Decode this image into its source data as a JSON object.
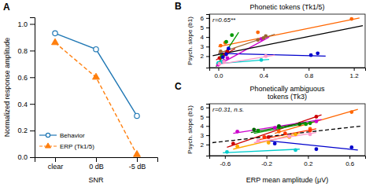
{
  "chart_data": [
    {
      "type": "line",
      "annotations": [
        "A"
      ],
      "xlabel": "SNR",
      "ylabel": "Normalized response amplitude",
      "categories": [
        "clear",
        "0 dB",
        "-5 dB"
      ],
      "series": [
        {
          "name": "Behavior",
          "values": [
            0.93,
            0.81,
            0.31
          ],
          "marker": "circle",
          "line_style": "solid"
        },
        {
          "name": "ERP (Tk1/5)",
          "values": [
            0.86,
            0.6,
            0.02
          ],
          "marker": "triangle",
          "line_style": "dashed"
        }
      ],
      "ylim": [
        0,
        1.05
      ],
      "yticks": [
        {
          "value": 0,
          "label": "0.0"
        },
        0.2,
        0.4,
        0.6,
        0.8,
        {
          "value": 1,
          "label": "1.0"
        }
      ],
      "legend": "lower left"
    },
    {
      "type": "scatter",
      "title": "Phonetic tokens (Tk1/5)",
      "ylabel": "Psych. slope (b1)",
      "annotations": [
        "B",
        "r=0.65**"
      ],
      "xlim": [
        -0.08,
        1.3
      ],
      "ylim": [
        0.8,
        6.4
      ],
      "xticks": [
        {
          "value": 0,
          "label": "0.0"
        },
        0.4,
        0.8,
        1.2
      ],
      "yticks": [
        2,
        3,
        4,
        5,
        6
      ],
      "series": [
        {
          "type": "scatter",
          "color": "#cc0000",
          "x": [
            0.01,
            0.04,
            0.06,
            0.08
          ],
          "values": [
            1.8,
            2.0,
            2.2,
            2.5
          ]
        },
        {
          "type": "line",
          "color": "#cc0000",
          "x": [
            -0.02,
            0.15
          ],
          "values": [
            1.6,
            2.8
          ]
        },
        {
          "type": "scatter",
          "color": "#ff6600",
          "x": [
            0.02,
            0.06,
            0.35,
            1.18
          ],
          "values": [
            3.1,
            3.4,
            4.5,
            5.9
          ]
        },
        {
          "type": "line",
          "color": "#ff6600",
          "x": [
            0.0,
            1.25
          ],
          "values": [
            3.0,
            6.0
          ]
        },
        {
          "type": "scatter",
          "color": "#009900",
          "x": [
            0.0,
            0.03,
            0.07,
            0.12
          ],
          "values": [
            1.2,
            2.0,
            3.5,
            4.2
          ]
        },
        {
          "type": "line",
          "color": "#009900",
          "x": [
            -0.02,
            0.18
          ],
          "values": [
            0.9,
            4.5
          ]
        },
        {
          "type": "scatter",
          "color": "#0000cc",
          "x": [
            0.04,
            0.07,
            0.09,
            0.82,
            0.88
          ],
          "values": [
            1.9,
            2.2,
            2.8,
            2.1,
            2.3
          ]
        },
        {
          "type": "line",
          "color": "#0000cc",
          "x": [
            0.0,
            0.95
          ],
          "values": [
            2.3,
            2.0
          ]
        },
        {
          "type": "scatter",
          "color": "#cc00cc",
          "x": [
            0.0,
            0.05,
            0.08,
            0.38
          ],
          "values": [
            1.1,
            1.5,
            1.8,
            3.8
          ]
        },
        {
          "type": "line",
          "color": "#cc00cc",
          "x": [
            -0.02,
            0.45
          ],
          "values": [
            0.95,
            4.0
          ]
        },
        {
          "type": "scatter",
          "color": "#00cccc",
          "x": [
            0.0,
            0.03,
            0.38
          ],
          "values": [
            1.3,
            1.4,
            1.6
          ]
        },
        {
          "type": "line",
          "color": "#00cccc",
          "x": [
            -0.02,
            0.45
          ],
          "values": [
            1.2,
            1.65
          ]
        },
        {
          "type": "scatter",
          "color": "#996633",
          "x": [
            0.02,
            0.35,
            0.4,
            0.42
          ],
          "values": [
            2.5,
            3.7,
            3.9,
            4.1
          ]
        },
        {
          "type": "line",
          "color": "#996633",
          "x": [
            0.0,
            0.5
          ],
          "values": [
            2.3,
            4.3
          ]
        },
        {
          "type": "scatter",
          "color": "#ff99cc",
          "x": [
            0.01,
            0.05,
            0.42
          ],
          "values": [
            1.2,
            1.4,
            2.0
          ]
        },
        {
          "type": "line",
          "color": "#ff99cc",
          "x": [
            -0.02,
            0.5
          ],
          "values": [
            1.1,
            2.1
          ]
        },
        {
          "type": "line",
          "color": "#000000",
          "line_style": "solid",
          "x": [
            -0.05,
            1.28
          ],
          "values": [
            2.05,
            5.2
          ]
        }
      ]
    },
    {
      "type": "scatter",
      "title": "Phonetically ambiguous\ntokens (Tk3)",
      "xlabel": "ERP mean amplitude (μV)",
      "ylabel": "Psych. slope (b1)",
      "annotations": [
        "C",
        "r=0.31, n.s."
      ],
      "xlim": [
        -0.75,
        0.75
      ],
      "ylim": [
        0.8,
        6.4
      ],
      "xticks": [
        -0.6,
        -0.2,
        0.2,
        0.6
      ],
      "yticks": [
        2,
        3,
        4,
        5,
        6
      ],
      "series": [
        {
          "type": "scatter",
          "color": "#cc0000",
          "x": [
            -0.52,
            -0.18,
            0.28
          ],
          "values": [
            2.1,
            2.8,
            5.0
          ]
        },
        {
          "type": "line",
          "color": "#cc0000",
          "x": [
            -0.58,
            0.33
          ],
          "values": [
            1.7,
            5.2
          ]
        },
        {
          "type": "scatter",
          "color": "#ff6600",
          "x": [
            -0.08,
            0.22,
            0.62
          ],
          "values": [
            3.4,
            3.7,
            5.5
          ]
        },
        {
          "type": "line",
          "color": "#ff6600",
          "x": [
            -0.12,
            0.68
          ],
          "values": [
            3.2,
            5.8
          ]
        },
        {
          "type": "scatter",
          "color": "#009900",
          "x": [
            -0.28,
            -0.08,
            0.18,
            0.22
          ],
          "values": [
            3.5,
            3.9,
            4.2,
            4.3
          ]
        },
        {
          "type": "line",
          "color": "#009900",
          "x": [
            -0.32,
            0.28
          ],
          "values": [
            3.2,
            4.5
          ]
        },
        {
          "type": "scatter",
          "color": "#0000cc",
          "x": [
            -0.12,
            0.28,
            0.62
          ],
          "values": [
            2.1,
            1.5,
            1.7
          ]
        },
        {
          "type": "line",
          "color": "#0000cc",
          "x": [
            -0.18,
            0.68
          ],
          "values": [
            2.4,
            1.4
          ]
        },
        {
          "type": "scatter",
          "color": "#cc00cc",
          "x": [
            -0.48,
            -0.12,
            0.28
          ],
          "values": [
            3.4,
            3.8,
            4.5
          ]
        },
        {
          "type": "line",
          "color": "#cc00cc",
          "x": [
            -0.52,
            0.33
          ],
          "values": [
            3.2,
            4.7
          ]
        },
        {
          "type": "scatter",
          "color": "#00cccc",
          "x": [
            -0.58,
            0.08
          ],
          "values": [
            1.2,
            1.4
          ]
        },
        {
          "type": "line",
          "color": "#00cccc",
          "x": [
            -0.62,
            0.12
          ],
          "values": [
            1.1,
            1.5
          ]
        },
        {
          "type": "scatter",
          "color": "#ffaa00",
          "x": [
            -0.48,
            -0.18,
            0.02,
            0.08
          ],
          "values": [
            1.8,
            2.2,
            2.8,
            3.1
          ]
        },
        {
          "type": "line",
          "color": "#ffaa00",
          "x": [
            -0.52,
            0.12
          ],
          "values": [
            1.5,
            3.2
          ]
        },
        {
          "type": "scatter",
          "color": "#ff3300",
          "x": [
            -0.22,
            -0.02,
            0.22
          ],
          "values": [
            2.8,
            3.2,
            3.5
          ]
        },
        {
          "type": "line",
          "color": "#ff3300",
          "x": [
            -0.28,
            0.28
          ],
          "values": [
            2.5,
            3.7
          ]
        },
        {
          "type": "scatter",
          "color": "#006600",
          "x": [
            -0.32,
            -0.08,
            0.12
          ],
          "values": [
            3.6,
            4.0,
            4.2
          ]
        },
        {
          "type": "line",
          "color": "#006600",
          "x": [
            -0.35,
            0.18
          ],
          "values": [
            3.3,
            4.4
          ]
        },
        {
          "type": "scatter",
          "color": "#ff99cc",
          "x": [
            -0.28,
            0.02,
            0.22
          ],
          "values": [
            2.4,
            2.9,
            3.1
          ]
        },
        {
          "type": "line",
          "color": "#ff99cc",
          "x": [
            -0.32,
            0.28
          ],
          "values": [
            2.2,
            3.3
          ]
        },
        {
          "type": "line",
          "color": "#000000",
          "line_style": "dashed",
          "x": [
            -0.72,
            0.72
          ],
          "values": [
            2.2,
            4.0
          ]
        }
      ]
    }
  ]
}
